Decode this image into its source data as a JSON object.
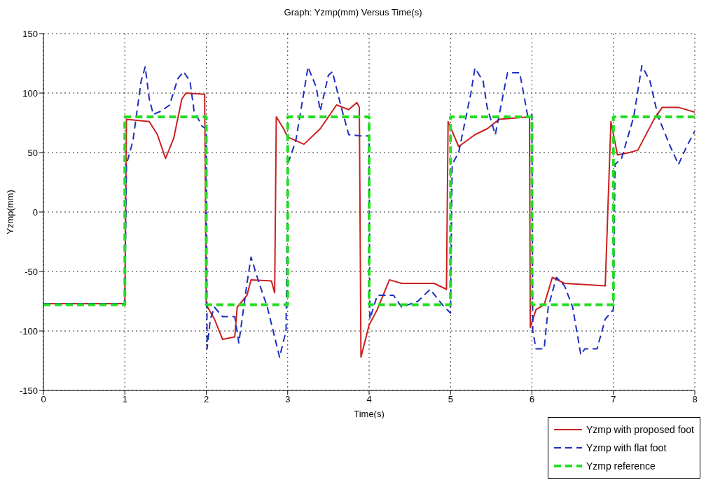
{
  "chart_data": {
    "type": "line",
    "title": "Graph: Yzmp(mm) Versus Time(s)",
    "xlabel": "Time(s)",
    "ylabel": "Yzmp(mm)",
    "xlim": [
      0,
      8
    ],
    "xticks": [
      0,
      1,
      2,
      3,
      4,
      5,
      6,
      7,
      8
    ],
    "ylim": [
      -150,
      150
    ],
    "yticks": [
      -150,
      -100,
      -50,
      0,
      50,
      100,
      150
    ],
    "grid": true,
    "legend": "bottom right",
    "marker": "none",
    "series": [
      {
        "name": "Yzmp with proposed foot",
        "color": "#cc1f1f",
        "line_style": "solid",
        "x": [
          0,
          1,
          1.02,
          1.3,
          1.4,
          1.5,
          1.6,
          1.7,
          1.75,
          1.98,
          2,
          2.1,
          2.2,
          2.35,
          2.38,
          2.5,
          2.55,
          2.8,
          2.84,
          2.86,
          2.95,
          3,
          3.2,
          3.4,
          3.6,
          3.75,
          3.85,
          3.88,
          3.9,
          4,
          4.1,
          4.25,
          4.4,
          4.8,
          4.95,
          4.97,
          5.1,
          5.3,
          5.45,
          5.6,
          5.97,
          5.98,
          6.05,
          6.15,
          6.25,
          6.4,
          6.9,
          6.97,
          7.05,
          7.2,
          7.3,
          7.5,
          7.6,
          7.8,
          8
        ],
        "values": [
          -77,
          -77,
          78,
          76,
          65,
          45,
          62,
          95,
          100,
          99,
          -78,
          -90,
          -107,
          -105,
          -80,
          -70,
          -57,
          -58,
          -68,
          80,
          70,
          63,
          57,
          70,
          90,
          86,
          92,
          88,
          -122,
          -95,
          -82,
          -57,
          -60,
          -60,
          -65,
          76,
          55,
          65,
          70,
          78,
          80,
          -97,
          -82,
          -78,
          -55,
          -60,
          -62,
          76,
          48,
          50,
          52,
          78,
          88,
          88,
          84
        ]
      },
      {
        "name": "Yzmp with flat foot",
        "color": "#1f2fbf",
        "line_style": "dashed",
        "x": [
          0,
          1,
          1.02,
          1.1,
          1.2,
          1.25,
          1.3,
          1.35,
          1.45,
          1.55,
          1.65,
          1.72,
          1.8,
          1.85,
          1.95,
          2,
          2.01,
          2.05,
          2.1,
          2.2,
          2.35,
          2.4,
          2.5,
          2.55,
          2.65,
          2.75,
          2.9,
          2.98,
          3,
          3.1,
          3.25,
          3.35,
          3.4,
          3.5,
          3.55,
          3.65,
          3.75,
          3.9,
          4,
          4.01,
          4.1,
          4.3,
          4.4,
          4.6,
          4.75,
          4.9,
          5,
          5.02,
          5.1,
          5.25,
          5.3,
          5.4,
          5.45,
          5.55,
          5.65,
          5.7,
          5.85,
          5.95,
          6,
          6.01,
          6.05,
          6.15,
          6.2,
          6.3,
          6.4,
          6.5,
          6.6,
          6.65,
          6.8,
          6.9,
          7,
          7.02,
          7.1,
          7.25,
          7.35,
          7.45,
          7.55,
          7.7,
          7.8,
          7.9,
          8
        ],
        "values": [
          -77,
          -77,
          40,
          60,
          110,
          122,
          95,
          82,
          85,
          90,
          112,
          118,
          110,
          85,
          72,
          70,
          -115,
          -90,
          -80,
          -88,
          -88,
          -110,
          -60,
          -38,
          -60,
          -80,
          -122,
          -100,
          40,
          60,
          122,
          105,
          85,
          115,
          118,
          90,
          65,
          64,
          64,
          -90,
          -70,
          -70,
          -80,
          -75,
          -65,
          -78,
          -85,
          40,
          50,
          100,
          121,
          110,
          88,
          65,
          100,
          117,
          117,
          80,
          82,
          -100,
          -115,
          -115,
          -80,
          -55,
          -62,
          -80,
          -120,
          -115,
          -115,
          -90,
          -82,
          40,
          45,
          80,
          123,
          110,
          80,
          55,
          40,
          55,
          68
        ]
      },
      {
        "name": "Yzmp reference",
        "color": "#22dd22",
        "line_style": "dashed",
        "x": [
          0,
          1,
          1,
          2,
          2,
          3,
          3,
          4,
          4,
          5,
          5,
          6,
          6,
          7,
          7,
          8
        ],
        "values": [
          -78,
          -78,
          80,
          80,
          -78,
          -78,
          80,
          80,
          -78,
          -78,
          80,
          80,
          -78,
          -78,
          80,
          80
        ]
      }
    ]
  }
}
